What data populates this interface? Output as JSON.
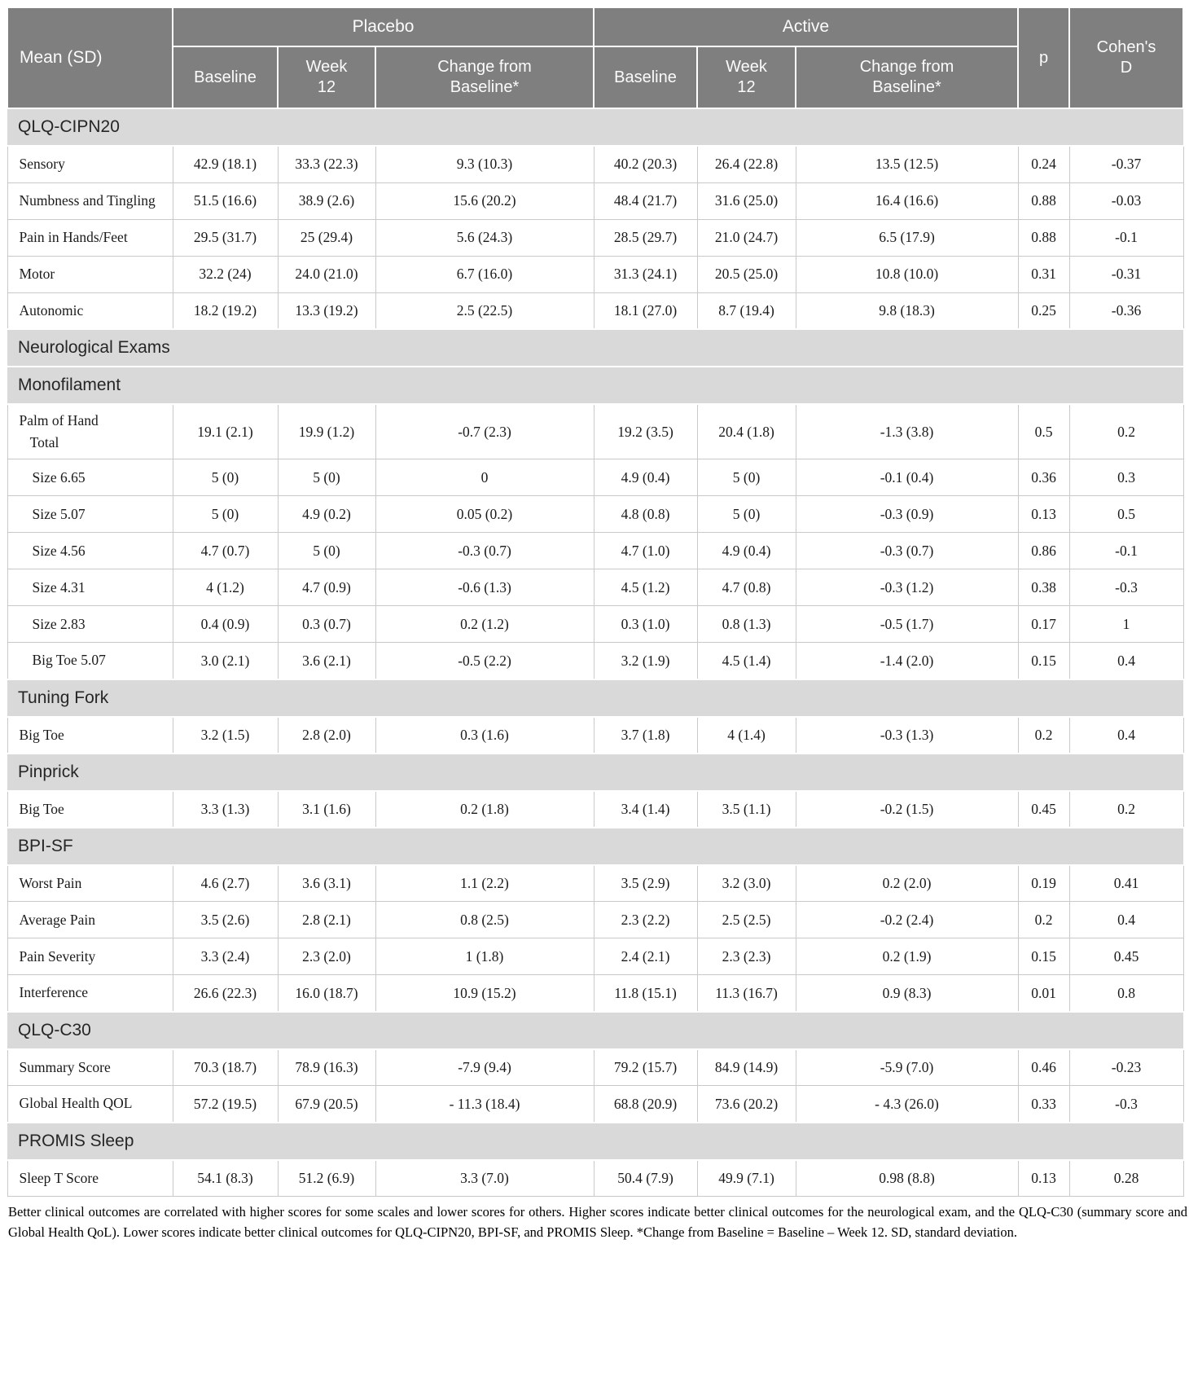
{
  "header": {
    "corner_label": "Mean (SD)",
    "groups": [
      {
        "label": "Placebo"
      },
      {
        "label": "Active"
      }
    ],
    "subcolumns": [
      "Baseline",
      "Week 12",
      "Change from Baseline*"
    ],
    "p_label": "p",
    "cohens_label": "Cohen's D"
  },
  "colors": {
    "header_bg": "#7f7f7f",
    "header_text": "#fbfbfb",
    "section_bg": "#d9d9d9",
    "grid_line": "#c9c9c9"
  },
  "sections": [
    {
      "title": "QLQ-CIPN20",
      "rows": [
        {
          "label": "Sensory",
          "indent": 0,
          "cells": [
            "42.9 (18.1)",
            "33.3 (22.3)",
            "9.3 (10.3)",
            "40.2 (20.3)",
            "26.4 (22.8)",
            "13.5 (12.5)",
            "0.24",
            "-0.37"
          ]
        },
        {
          "label": "Numbness and Tingling",
          "indent": 0,
          "cells": [
            "51.5 (16.6)",
            "38.9 (2.6)",
            "15.6 (20.2)",
            "48.4 (21.7)",
            "31.6 (25.0)",
            "16.4 (16.6)",
            "0.88",
            "-0.03"
          ]
        },
        {
          "label": "Pain in Hands/Feet",
          "indent": 0,
          "cells": [
            "29.5 (31.7)",
            "25 (29.4)",
            "5.6 (24.3)",
            "28.5 (29.7)",
            "21.0 (24.7)",
            "6.5 (17.9)",
            "0.88",
            "-0.1"
          ]
        },
        {
          "label": "Motor",
          "indent": 0,
          "cells": [
            "32.2 (24)",
            "24.0 (21.0)",
            "6.7 (16.0)",
            "31.3 (24.1)",
            "20.5 (25.0)",
            "10.8 (10.0)",
            "0.31",
            "-0.31"
          ]
        },
        {
          "label": "Autonomic",
          "indent": 0,
          "cells": [
            "18.2 (19.2)",
            "13.3 (19.2)",
            "2.5 (22.5)",
            "18.1 (27.0)",
            "8.7 (19.4)",
            "9.8 (18.3)",
            "0.25",
            "-0.36"
          ]
        }
      ]
    },
    {
      "title": "Neurological Exams",
      "rows": []
    },
    {
      "title": "Monofilament",
      "rows": [
        {
          "label": "Palm of Hand\n   Total",
          "indent": 0,
          "cells": [
            "19.1 (2.1)",
            "19.9 (1.2)",
            "-0.7 (2.3)",
            "19.2 (3.5)",
            "20.4 (1.8)",
            "-1.3 (3.8)",
            "0.5",
            "0.2"
          ]
        },
        {
          "label": "Size 6.65",
          "indent": 1,
          "cells": [
            "5 (0)",
            "5 (0)",
            "0",
            "4.9 (0.4)",
            "5 (0)",
            "-0.1 (0.4)",
            "0.36",
            "0.3"
          ]
        },
        {
          "label": "Size 5.07",
          "indent": 1,
          "cells": [
            "5 (0)",
            "4.9 (0.2)",
            "0.05 (0.2)",
            "4.8 (0.8)",
            "5 (0)",
            "-0.3 (0.9)",
            "0.13",
            "0.5"
          ]
        },
        {
          "label": "Size 4.56",
          "indent": 1,
          "cells": [
            "4.7 (0.7)",
            "5 (0)",
            "-0.3 (0.7)",
            "4.7 (1.0)",
            "4.9 (0.4)",
            "-0.3 (0.7)",
            "0.86",
            "-0.1"
          ]
        },
        {
          "label": "Size 4.31",
          "indent": 1,
          "cells": [
            "4 (1.2)",
            "4.7 (0.9)",
            "-0.6 (1.3)",
            "4.5 (1.2)",
            "4.7 (0.8)",
            "-0.3 (1.2)",
            "0.38",
            "-0.3"
          ]
        },
        {
          "label": "Size 2.83",
          "indent": 1,
          "cells": [
            "0.4 (0.9)",
            "0.3 (0.7)",
            "0.2 (1.2)",
            "0.3 (1.0)",
            "0.8 (1.3)",
            "-0.5 (1.7)",
            "0.17",
            "1"
          ]
        },
        {
          "label": "Big Toe 5.07",
          "indent": 1,
          "cells": [
            "3.0 (2.1)",
            "3.6 (2.1)",
            "-0.5 (2.2)",
            "3.2 (1.9)",
            "4.5 (1.4)",
            "-1.4 (2.0)",
            "0.15",
            "0.4"
          ]
        }
      ]
    },
    {
      "title": "Tuning Fork",
      "rows": [
        {
          "label": "Big Toe",
          "indent": 0,
          "cells": [
            "3.2 (1.5)",
            "2.8 (2.0)",
            "0.3 (1.6)",
            "3.7 (1.8)",
            "4 (1.4)",
            "-0.3 (1.3)",
            "0.2",
            "0.4"
          ]
        }
      ]
    },
    {
      "title": "Pinprick",
      "rows": [
        {
          "label": "Big Toe",
          "indent": 0,
          "cells": [
            "3.3 (1.3)",
            "3.1 (1.6)",
            "0.2 (1.8)",
            "3.4 (1.4)",
            "3.5 (1.1)",
            "-0.2 (1.5)",
            "0.45",
            "0.2"
          ]
        }
      ]
    },
    {
      "title": "BPI-SF",
      "rows": [
        {
          "label": "Worst Pain",
          "indent": 0,
          "cells": [
            "4.6 (2.7)",
            "3.6 (3.1)",
            "1.1 (2.2)",
            "3.5 (2.9)",
            "3.2 (3.0)",
            "0.2 (2.0)",
            "0.19",
            "0.41"
          ]
        },
        {
          "label": "Average Pain",
          "indent": 0,
          "cells": [
            "3.5 (2.6)",
            "2.8 (2.1)",
            "0.8 (2.5)",
            "2.3 (2.2)",
            "2.5 (2.5)",
            "-0.2 (2.4)",
            "0.2",
            "0.4"
          ]
        },
        {
          "label": "Pain Severity",
          "indent": 0,
          "cells": [
            "3.3 (2.4)",
            "2.3 (2.0)",
            "1 (1.8)",
            "2.4 (2.1)",
            "2.3 (2.3)",
            "0.2 (1.9)",
            "0.15",
            "0.45"
          ]
        },
        {
          "label": "Interference",
          "indent": 0,
          "cells": [
            "26.6 (22.3)",
            "16.0 (18.7)",
            "10.9 (15.2)",
            "11.8 (15.1)",
            "11.3 (16.7)",
            "0.9 (8.3)",
            "0.01",
            "0.8"
          ]
        }
      ]
    },
    {
      "title": "QLQ-C30",
      "rows": [
        {
          "label": "Summary Score",
          "indent": 0,
          "cells": [
            "70.3 (18.7)",
            "78.9 (16.3)",
            "-7.9 (9.4)",
            "79.2 (15.7)",
            "84.9 (14.9)",
            "-5.9 (7.0)",
            "0.46",
            "-0.23"
          ]
        },
        {
          "label": "Global Health QOL",
          "indent": 0,
          "cells": [
            "57.2 (19.5)",
            "67.9 (20.5)",
            "- 11.3 (18.4)",
            "68.8 (20.9)",
            "73.6 (20.2)",
            "- 4.3 (26.0)",
            "0.33",
            "-0.3"
          ]
        }
      ]
    },
    {
      "title": "PROMIS Sleep",
      "rows": [
        {
          "label": "Sleep T Score",
          "indent": 0,
          "cells": [
            "54.1 (8.3)",
            "51.2 (6.9)",
            "3.3 (7.0)",
            "50.4 (7.9)",
            "49.9 (7.1)",
            "0.98 (8.8)",
            "0.13",
            "0.28"
          ]
        }
      ]
    }
  ],
  "footnote": "Better clinical outcomes are correlated with higher scores for some scales and lower scores for others. Higher scores indicate better clinical outcomes for the neurological exam, and the QLQ-C30 (summary score and Global Health QoL). Lower scores indicate better clinical outcomes for QLQ-CIPN20, BPI-SF, and PROMIS Sleep. *Change from Baseline = Baseline – Week 12. SD, standard deviation."
}
